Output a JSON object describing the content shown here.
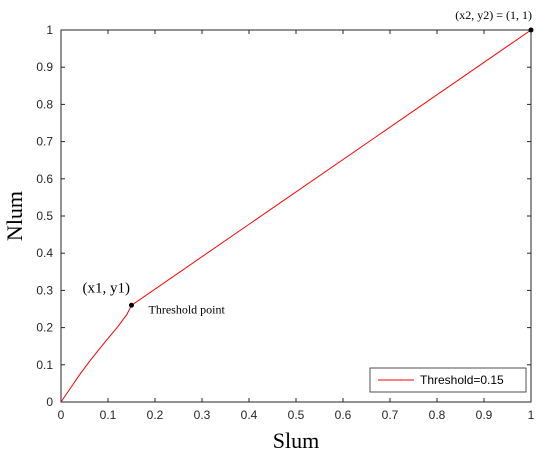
{
  "chart_data": {
    "type": "line",
    "xlabel": "Slum",
    "ylabel": "Nlum",
    "xlim": [
      0,
      1
    ],
    "ylim": [
      0,
      1
    ],
    "x_ticks": [
      "0",
      "0.1",
      "0.2",
      "0.3",
      "0.4",
      "0.5",
      "0.6",
      "0.7",
      "0.8",
      "0.9",
      "1"
    ],
    "y_ticks": [
      "0",
      "0.1",
      "0.2",
      "0.3",
      "0.4",
      "0.5",
      "0.6",
      "0.7",
      "0.8",
      "0.9",
      "1"
    ],
    "grid": false,
    "legend_position": "bottom-right",
    "series": [
      {
        "name": "Threshold=0.15",
        "color": "#ff0000",
        "x": [
          0,
          0.02,
          0.04,
          0.06,
          0.08,
          0.1,
          0.12,
          0.14,
          0.15,
          1
        ],
        "y": [
          0,
          0.037,
          0.074,
          0.108,
          0.14,
          0.171,
          0.201,
          0.235,
          0.26,
          1
        ]
      }
    ],
    "points": [
      {
        "x": 0.15,
        "y": 0.26,
        "label": "(x1, y1)",
        "sublabel": "Threshold point"
      },
      {
        "x": 1,
        "y": 1,
        "label": "(x2, y2) = (1, 1)"
      }
    ]
  }
}
